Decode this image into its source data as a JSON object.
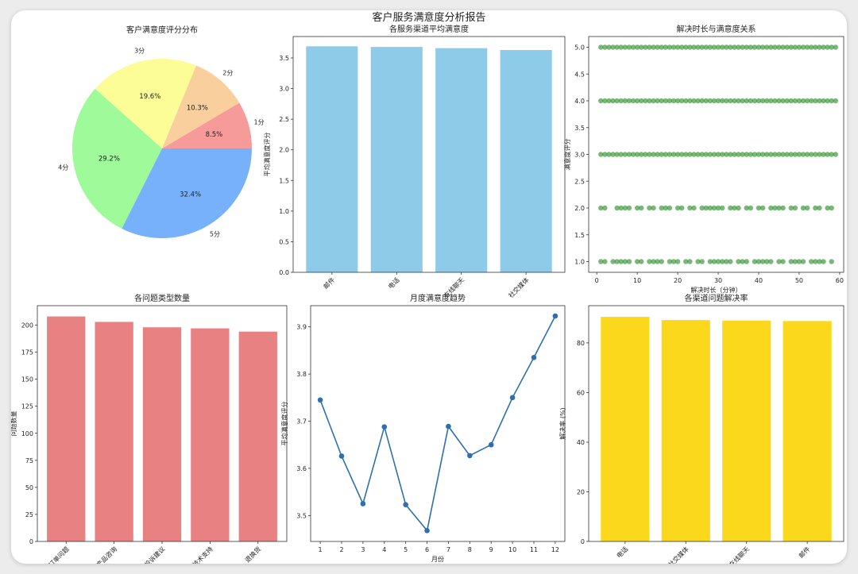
{
  "figure_title": "客户服务满意度分析报告",
  "chart_data": [
    {
      "id": "pie",
      "type": "pie",
      "title": "客户满意度评分分布",
      "labels": [
        "1分",
        "2分",
        "3分",
        "4分",
        "5分"
      ],
      "values": [
        8.5,
        10.3,
        19.6,
        29.2,
        32.4
      ],
      "value_labels": [
        "8.5%",
        "10.3%",
        "19.6%",
        "29.2%",
        "32.4%"
      ],
      "colors": [
        "#f79a9a",
        "#f9cf9e",
        "#fdfd98",
        "#9ffa9a",
        "#77b1fb"
      ]
    },
    {
      "id": "channel-satisfaction",
      "type": "bar",
      "title": "各服务渠道平均满意度",
      "xlabel": "",
      "ylabel": "平均满意度评分",
      "categories": [
        "邮件",
        "电话",
        "在线聊天",
        "社交媒体"
      ],
      "values": [
        3.69,
        3.68,
        3.66,
        3.63
      ],
      "ylim": [
        0,
        3.85
      ],
      "yticks": [
        "0.0",
        "0.5",
        "1.0",
        "1.5",
        "2.0",
        "2.5",
        "3.0",
        "3.5"
      ],
      "color": "#8ecbe8"
    },
    {
      "id": "duration-scatter",
      "type": "scatter",
      "title": "解决时长与满意度关系",
      "xlabel": "解决时长（分钟）",
      "ylabel": "满意度评分",
      "xlim": [
        -2,
        61
      ],
      "ylim": [
        0.8,
        5.2
      ],
      "xticks": [
        "0",
        "10",
        "20",
        "30",
        "40",
        "50",
        "60"
      ],
      "yticks": [
        "1.0",
        "1.5",
        "2.0",
        "2.5",
        "3.0",
        "3.5",
        "4.0",
        "4.5",
        "5.0"
      ],
      "color": "#1e8a1e",
      "rows": [
        {
          "y": 5,
          "x": [
            1,
            2,
            3,
            4,
            5,
            6,
            7,
            8,
            9,
            10,
            11,
            12,
            13,
            14,
            15,
            16,
            17,
            18,
            19,
            20,
            21,
            22,
            23,
            24,
            25,
            26,
            27,
            28,
            29,
            30,
            31,
            32,
            33,
            34,
            35,
            36,
            37,
            38,
            39,
            40,
            41,
            42,
            43,
            44,
            45,
            46,
            47,
            48,
            49,
            50,
            51,
            52,
            53,
            54,
            55,
            56,
            57,
            58,
            59
          ]
        },
        {
          "y": 4,
          "x": [
            1,
            2,
            3,
            4,
            5,
            6,
            7,
            8,
            9,
            10,
            11,
            12,
            13,
            14,
            15,
            16,
            17,
            18,
            19,
            20,
            21,
            22,
            23,
            24,
            25,
            26,
            27,
            28,
            29,
            30,
            31,
            32,
            33,
            34,
            35,
            36,
            37,
            38,
            39,
            40,
            41,
            42,
            43,
            44,
            45,
            46,
            47,
            48,
            49,
            50,
            51,
            52,
            53,
            54,
            55,
            56,
            57,
            58,
            59
          ]
        },
        {
          "y": 3,
          "x": [
            1,
            2,
            3,
            4,
            5,
            6,
            7,
            8,
            9,
            10,
            11,
            12,
            13,
            14,
            15,
            16,
            17,
            18,
            19,
            20,
            21,
            22,
            23,
            24,
            25,
            26,
            27,
            28,
            29,
            30,
            31,
            32,
            33,
            34,
            35,
            36,
            37,
            38,
            39,
            40,
            41,
            42,
            43,
            44,
            45,
            46,
            47,
            48,
            49,
            50,
            51,
            52,
            53,
            54,
            55,
            56,
            57,
            58,
            59
          ]
        },
        {
          "y": 2,
          "x": [
            1,
            2,
            5,
            6,
            7,
            8,
            10,
            11,
            13,
            14,
            16,
            17,
            18,
            20,
            21,
            23,
            24,
            26,
            27,
            28,
            29,
            30,
            31,
            33,
            34,
            35,
            37,
            38,
            40,
            41,
            43,
            44,
            45,
            46,
            48,
            49,
            51,
            52,
            54,
            55,
            57,
            58
          ]
        },
        {
          "y": 1,
          "x": [
            1,
            2,
            4,
            5,
            6,
            7,
            8,
            10,
            11,
            13,
            14,
            15,
            16,
            18,
            19,
            20,
            22,
            23,
            25,
            26,
            28,
            29,
            30,
            31,
            32,
            33,
            35,
            36,
            37,
            39,
            40,
            41,
            42,
            43,
            45,
            46,
            48,
            49,
            50,
            51,
            53,
            54,
            55,
            56,
            58
          ]
        }
      ]
    },
    {
      "id": "issue-types",
      "type": "bar",
      "title": "各问题类型数量",
      "xlabel": "",
      "ylabel": "问题数量",
      "categories": [
        "订单问题",
        "产品咨询",
        "投诉建议",
        "技术支持",
        "退换货"
      ],
      "values": [
        208,
        203,
        198,
        197,
        194
      ],
      "ylim": [
        0,
        218
      ],
      "yticks": [
        "0",
        "25",
        "50",
        "75",
        "100",
        "125",
        "150",
        "175",
        "200"
      ],
      "color": "#e88282"
    },
    {
      "id": "monthly-trend",
      "type": "line",
      "title": "月度满意度趋势",
      "xlabel": "月份",
      "ylabel": "平均满意度评分",
      "x": [
        1,
        2,
        3,
        4,
        5,
        6,
        7,
        8,
        9,
        10,
        11,
        12
      ],
      "values": [
        3.745,
        3.626,
        3.525,
        3.688,
        3.523,
        3.468,
        3.689,
        3.627,
        3.65,
        3.75,
        3.835,
        3.923
      ],
      "xlim": [
        0.55,
        12.45
      ],
      "ylim": [
        3.445,
        3.945
      ],
      "yticks": [
        "3.5",
        "3.6",
        "3.7",
        "3.8",
        "3.9"
      ],
      "xticks": [
        "1",
        "2",
        "3",
        "4",
        "5",
        "6",
        "7",
        "8",
        "9",
        "10",
        "11",
        "12"
      ],
      "color": "#2f6fb0"
    },
    {
      "id": "resolution-rate",
      "type": "bar",
      "title": "各渠道问题解决率",
      "xlabel": "",
      "ylabel": "解决率 (%)",
      "categories": [
        "电话",
        "社交媒体",
        "在线聊天",
        "邮件"
      ],
      "values": [
        90.5,
        89.2,
        89.0,
        88.8
      ],
      "ylim": [
        0,
        95
      ],
      "yticks": [
        "0",
        "20",
        "40",
        "60",
        "80"
      ],
      "color": "#fbd81c"
    }
  ]
}
